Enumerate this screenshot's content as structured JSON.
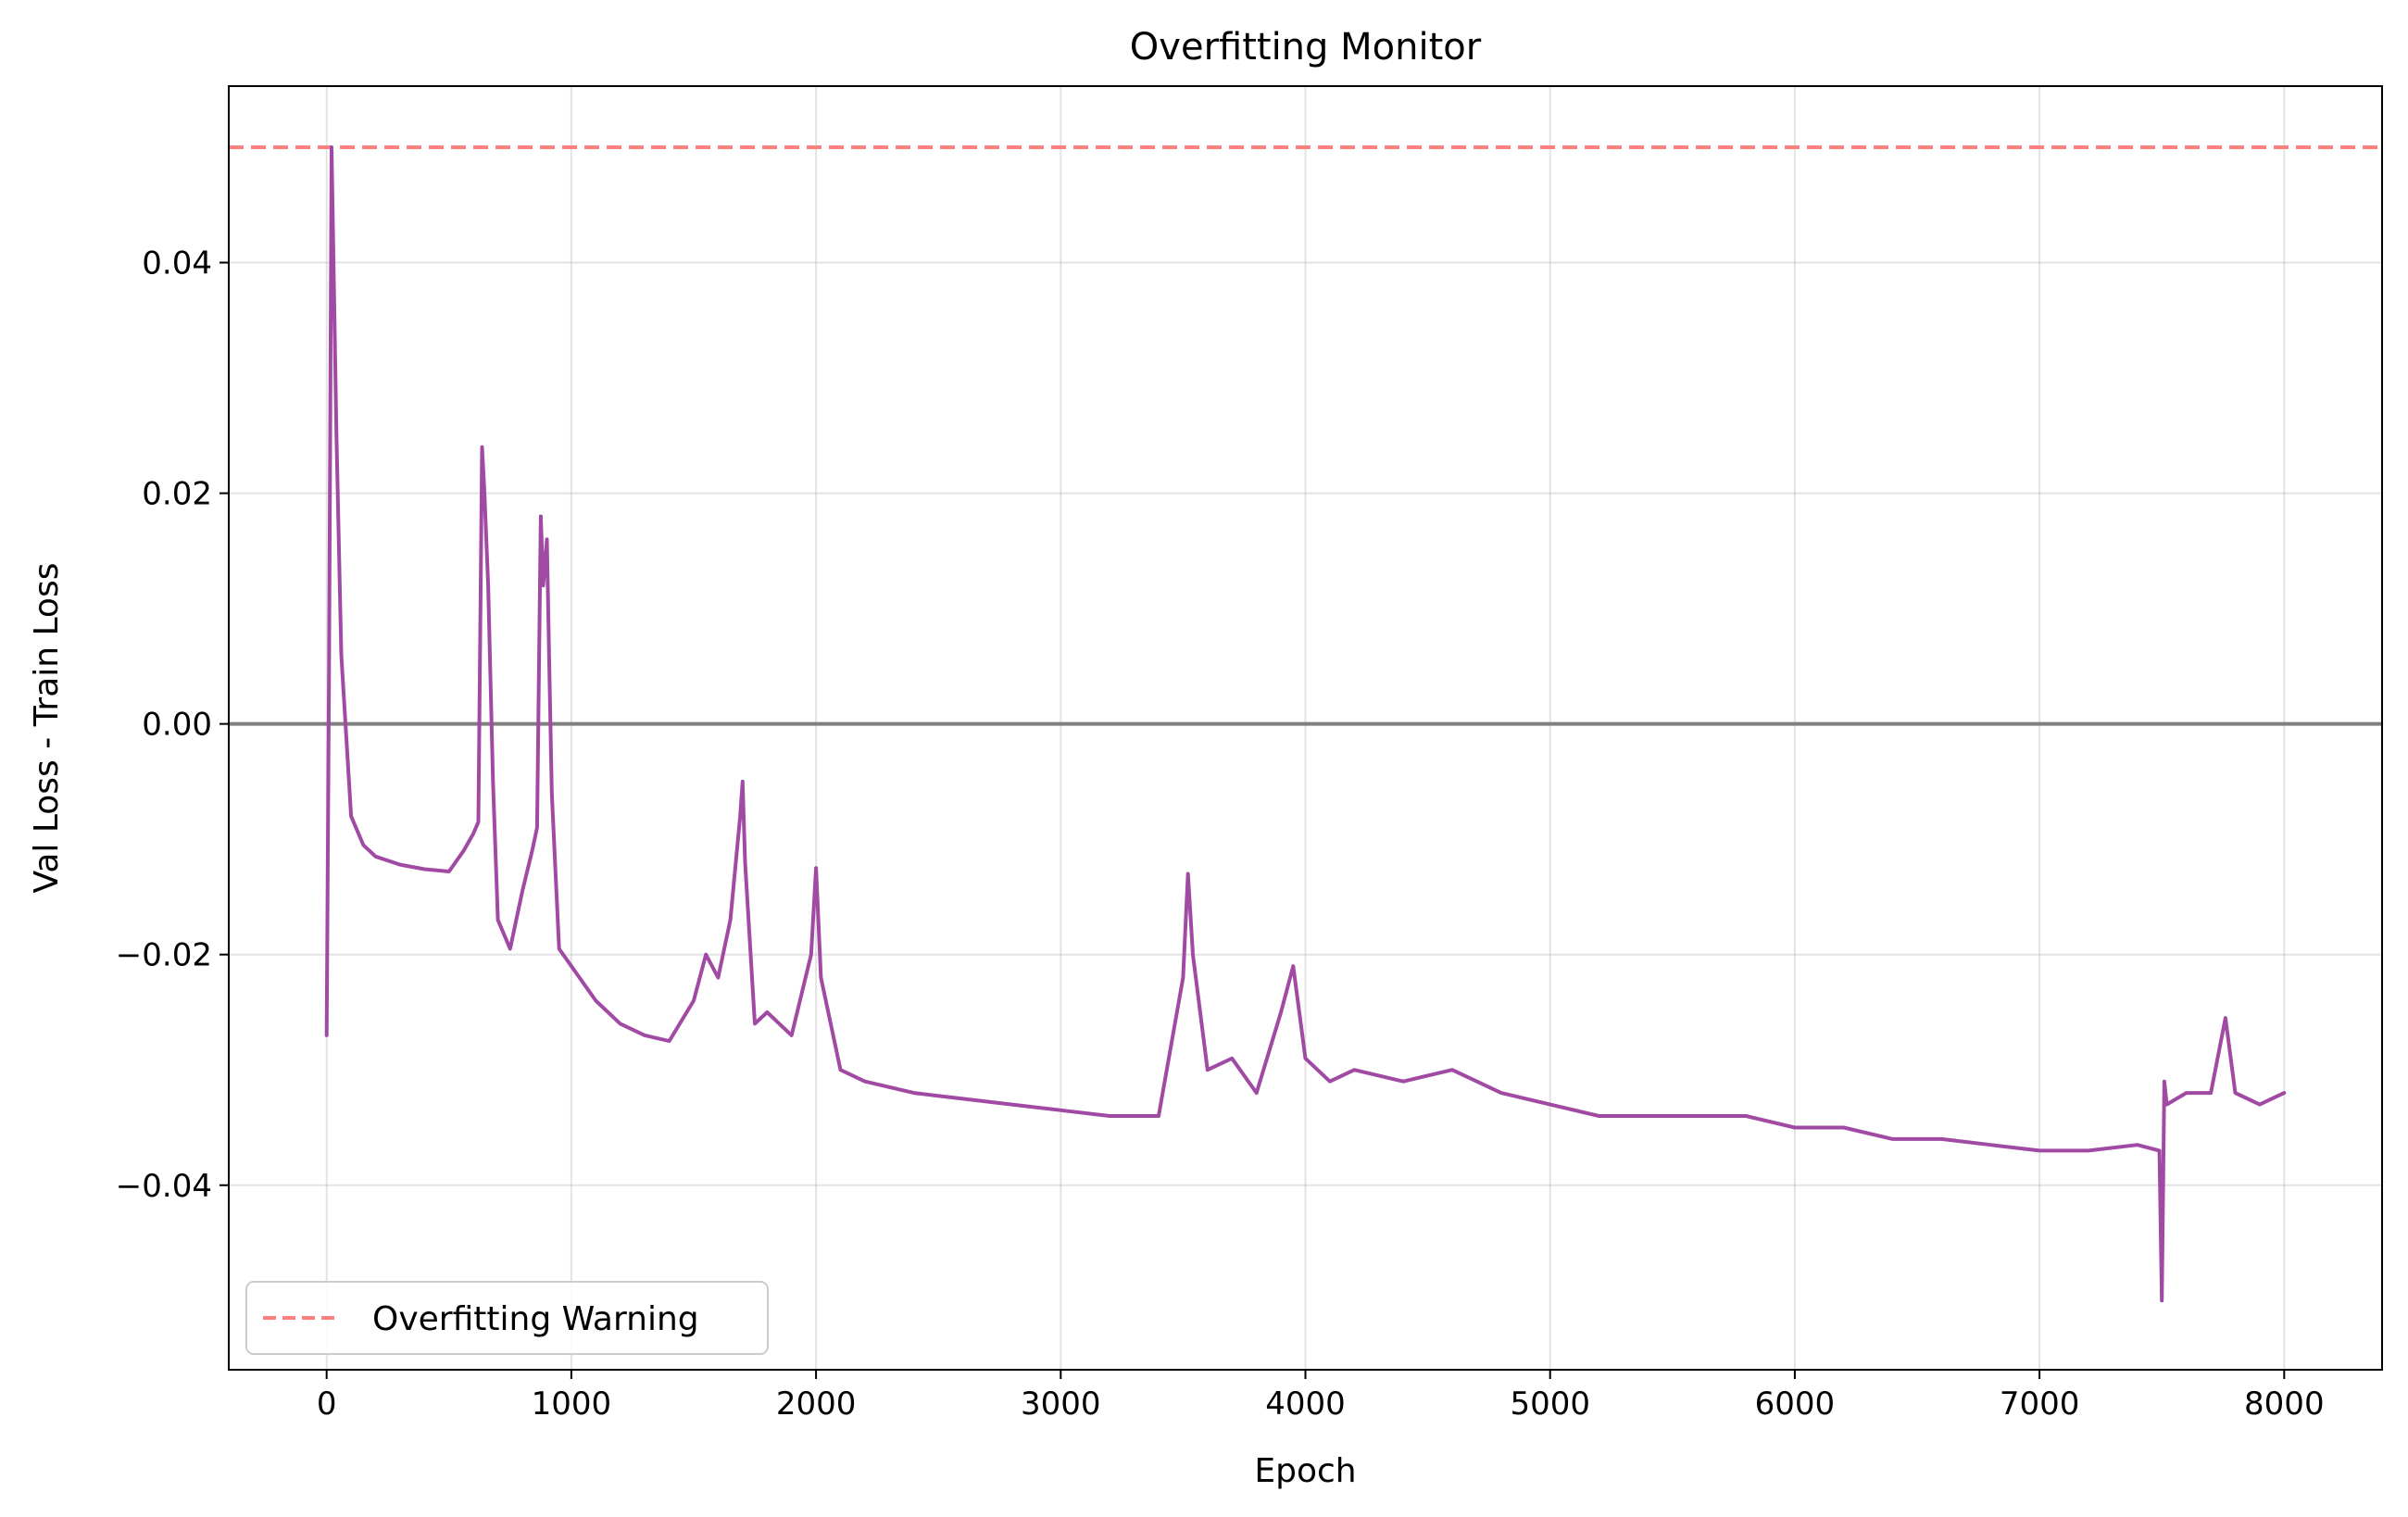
{
  "chart_data": {
    "type": "line",
    "title": "Overfitting Monitor",
    "xlabel": "Epoch",
    "ylabel": "Val Loss - Train Loss",
    "xlim": [
      -400,
      8400
    ],
    "ylim": [
      -0.056,
      0.0553
    ],
    "xticks": [
      0,
      1000,
      2000,
      3000,
      4000,
      5000,
      6000,
      7000,
      8000
    ],
    "xtick_labels": [
      "0",
      "1000",
      "2000",
      "3000",
      "4000",
      "5000",
      "6000",
      "7000",
      "8000"
    ],
    "yticks": [
      -0.04,
      -0.02,
      0.0,
      0.02,
      0.04
    ],
    "ytick_labels": [
      "−0.04",
      "−0.02",
      "0.00",
      "0.02",
      "0.04"
    ],
    "grid": true,
    "legend_position": "lower-left",
    "legend": [
      {
        "label": "Overfitting Warning"
      }
    ],
    "reference_lines": [
      {
        "y": 0.05,
        "style": "dashed",
        "color": "#ff7f7f",
        "legend_label": "Overfitting Warning"
      },
      {
        "y": 0.0,
        "style": "solid",
        "color": "#7f7f7f"
      }
    ],
    "series": [
      {
        "color": "#a04aa4",
        "x": [
          0,
          10,
          20,
          40,
          60,
          100,
          150,
          200,
          300,
          400,
          500,
          560,
          600,
          620,
          635,
          645,
          660,
          680,
          700,
          750,
          800,
          840,
          860,
          875,
          885,
          900,
          910,
          920,
          950,
          1000,
          1100,
          1200,
          1300,
          1400,
          1500,
          1550,
          1600,
          1650,
          1690,
          1700,
          1710,
          1750,
          1800,
          1900,
          1980,
          2000,
          2020,
          2100,
          2200,
          2400,
          2600,
          2800,
          3000,
          3200,
          3400,
          3500,
          3520,
          3540,
          3600,
          3700,
          3800,
          3900,
          3950,
          4000,
          4100,
          4200,
          4400,
          4600,
          4800,
          5000,
          5200,
          5400,
          5600,
          5800,
          6000,
          6200,
          6400,
          6600,
          6800,
          7000,
          7200,
          7400,
          7490,
          7500,
          7510,
          7520,
          7600,
          7700,
          7760,
          7800,
          7900,
          8000
        ],
        "y": [
          -0.027,
          0.005,
          0.05,
          0.025,
          0.006,
          -0.008,
          -0.0105,
          -0.0115,
          -0.0122,
          -0.0126,
          -0.0128,
          -0.011,
          -0.0095,
          -0.0085,
          0.024,
          0.02,
          0.012,
          -0.005,
          -0.017,
          -0.0195,
          -0.0145,
          -0.011,
          -0.009,
          0.018,
          0.012,
          0.016,
          0.005,
          -0.006,
          -0.0195,
          -0.021,
          -0.024,
          -0.026,
          -0.027,
          -0.0275,
          -0.024,
          -0.02,
          -0.022,
          -0.017,
          -0.008,
          -0.005,
          -0.012,
          -0.026,
          -0.025,
          -0.027,
          -0.02,
          -0.0125,
          -0.022,
          -0.03,
          -0.031,
          -0.032,
          -0.0325,
          -0.033,
          -0.0335,
          -0.034,
          -0.034,
          -0.022,
          -0.013,
          -0.02,
          -0.03,
          -0.029,
          -0.032,
          -0.025,
          -0.021,
          -0.029,
          -0.031,
          -0.03,
          -0.031,
          -0.03,
          -0.032,
          -0.033,
          -0.034,
          -0.034,
          -0.034,
          -0.034,
          -0.035,
          -0.035,
          -0.036,
          -0.036,
          -0.0365,
          -0.037,
          -0.037,
          -0.0365,
          -0.037,
          -0.05,
          -0.031,
          -0.033,
          -0.032,
          -0.032,
          -0.0255,
          -0.032,
          -0.033,
          -0.032
        ]
      }
    ]
  }
}
